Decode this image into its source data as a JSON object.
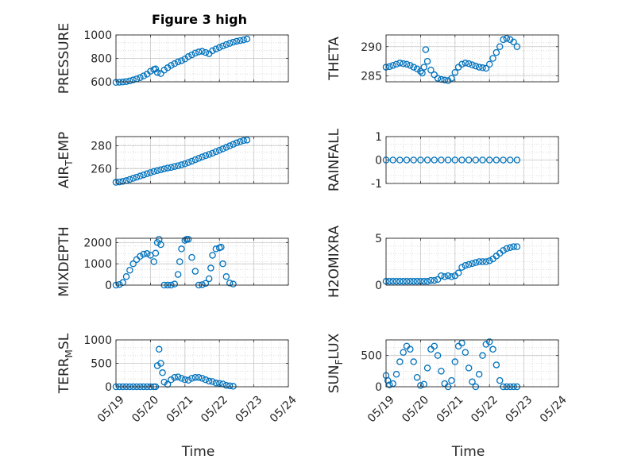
{
  "figure": {
    "title": "Figure 3 high",
    "marker_color": "#0072bd",
    "background": "#ffffff",
    "time_label": "Time",
    "date_ticks": [
      "05/19",
      "05/20",
      "05/21",
      "05/22",
      "05/23",
      "05/24"
    ]
  },
  "chart_data": [
    {
      "type": "scatter",
      "title": "Figure 3 high",
      "ylabel": "PRESSURE",
      "ylim": [
        600,
        1000
      ],
      "yticks": [
        600,
        800,
        1000
      ],
      "grid": true,
      "x_unit": "days after 05/19",
      "series": [
        {
          "x": [
            0,
            0.1,
            0.2,
            0.3,
            0.4,
            0.5,
            0.6,
            0.7,
            0.8,
            0.9,
            1.0,
            1.1,
            1.15,
            1.2,
            1.3,
            1.4,
            1.5,
            1.6,
            1.7,
            1.8,
            1.9,
            2.0,
            2.1,
            2.2,
            2.3,
            2.4,
            2.5,
            2.6,
            2.7,
            2.8,
            2.9,
            3.0,
            3.1,
            3.2,
            3.3,
            3.4,
            3.5,
            3.6,
            3.7,
            3.8
          ],
          "y": [
            595,
            596,
            598,
            602,
            608,
            616,
            625,
            636,
            650,
            665,
            690,
            705,
            710,
            680,
            670,
            700,
            720,
            740,
            755,
            770,
            780,
            795,
            815,
            830,
            845,
            855,
            860,
            850,
            840,
            865,
            880,
            893,
            906,
            918,
            928,
            938,
            946,
            952,
            958,
            965
          ]
        }
      ]
    },
    {
      "type": "scatter",
      "ylabel": "THETA",
      "ylim": [
        284,
        292
      ],
      "yticks": [
        285,
        290
      ],
      "grid": true,
      "series": [
        {
          "x": [
            0,
            0.1,
            0.2,
            0.3,
            0.4,
            0.5,
            0.6,
            0.7,
            0.8,
            0.9,
            1.0,
            1.05,
            1.1,
            1.15,
            1.2,
            1.3,
            1.4,
            1.5,
            1.6,
            1.7,
            1.8,
            1.9,
            2.0,
            2.1,
            2.2,
            2.3,
            2.4,
            2.5,
            2.6,
            2.7,
            2.8,
            2.9,
            3.0,
            3.1,
            3.2,
            3.3,
            3.4,
            3.5,
            3.6,
            3.7,
            3.8
          ],
          "y": [
            286.5,
            286.6,
            286.8,
            287.0,
            287.2,
            287.1,
            287.0,
            286.8,
            286.5,
            286.2,
            285.8,
            285.5,
            286.5,
            289.5,
            287.5,
            286.0,
            285.2,
            284.6,
            284.4,
            284.3,
            284.2,
            284.6,
            285.6,
            286.5,
            287.0,
            287.2,
            287.1,
            286.9,
            286.7,
            286.5,
            286.4,
            286.3,
            287.0,
            288.0,
            289.0,
            290.0,
            291.2,
            291.4,
            291.2,
            290.8,
            290.0
          ]
        }
      ]
    },
    {
      "type": "scatter",
      "ylabel": "AIR_TEMP",
      "ylabel_display": {
        "base": "AIR",
        "sub": "T",
        "rest": "EMP"
      },
      "ylim": [
        247,
        288
      ],
      "yticks": [
        260,
        280
      ],
      "grid": true,
      "series": [
        {
          "x": [
            0,
            0.1,
            0.2,
            0.3,
            0.4,
            0.5,
            0.6,
            0.7,
            0.8,
            0.9,
            1.0,
            1.1,
            1.2,
            1.3,
            1.4,
            1.5,
            1.6,
            1.7,
            1.8,
            1.9,
            2.0,
            2.1,
            2.2,
            2.3,
            2.4,
            2.5,
            2.6,
            2.7,
            2.8,
            2.9,
            3.0,
            3.1,
            3.2,
            3.3,
            3.4,
            3.5,
            3.6,
            3.7,
            3.8
          ],
          "y": [
            248,
            248.3,
            248.8,
            249.5,
            250.5,
            251.5,
            252.5,
            253.5,
            254.5,
            255.5,
            256.5,
            257.5,
            258.3,
            259.0,
            259.8,
            260.5,
            261.0,
            261.8,
            262.5,
            263.3,
            264.2,
            265.3,
            266.5,
            267.8,
            269.0,
            270.2,
            271.3,
            272.4,
            273.5,
            274.8,
            276.0,
            277.3,
            278.6,
            279.9,
            281.2,
            282.5,
            283.6,
            284.5,
            285.0
          ]
        }
      ]
    },
    {
      "type": "scatter",
      "ylabel": "RAINFALL",
      "ylim": [
        -1,
        1
      ],
      "yticks": [
        -1,
        0,
        1
      ],
      "grid": true,
      "series": [
        {
          "x": [
            0,
            0.2,
            0.4,
            0.6,
            0.8,
            1.0,
            1.2,
            1.4,
            1.6,
            1.8,
            2.0,
            2.2,
            2.4,
            2.6,
            2.8,
            3.0,
            3.2,
            3.4,
            3.6,
            3.8
          ],
          "y": [
            0,
            0,
            0,
            0,
            0,
            0,
            0,
            0,
            0,
            0,
            0,
            0,
            0,
            0,
            0,
            0,
            0,
            0,
            0,
            0
          ]
        }
      ]
    },
    {
      "type": "scatter",
      "ylabel": "MIXDEPTH",
      "ylim": [
        0,
        2200
      ],
      "yticks": [
        0,
        1000,
        2000
      ],
      "grid": true,
      "series": [
        {
          "x": [
            0,
            0.1,
            0.2,
            0.3,
            0.4,
            0.5,
            0.6,
            0.7,
            0.8,
            0.9,
            1.0,
            1.1,
            1.15,
            1.2,
            1.25,
            1.3,
            1.4,
            1.5,
            1.6,
            1.7,
            1.8,
            1.85,
            1.9,
            2.0,
            2.05,
            2.1,
            2.2,
            2.3,
            2.4,
            2.5,
            2.6,
            2.7,
            2.75,
            2.8,
            2.9,
            3.0,
            3.05,
            3.1,
            3.2,
            3.3,
            3.4
          ],
          "y": [
            0,
            30,
            120,
            400,
            700,
            1000,
            1200,
            1350,
            1450,
            1480,
            1400,
            1100,
            1500,
            2000,
            2150,
            1900,
            0,
            0,
            0,
            50,
            500,
            1100,
            1700,
            2100,
            2150,
            2150,
            1300,
            650,
            0,
            20,
            80,
            300,
            800,
            1400,
            1700,
            1750,
            1780,
            1000,
            400,
            100,
            50
          ]
        }
      ]
    },
    {
      "type": "scatter",
      "ylabel": "H2OMIXRA",
      "ylim": [
        0,
        5
      ],
      "yticks": [
        0,
        5
      ],
      "grid": true,
      "series": [
        {
          "x": [
            0,
            0.1,
            0.2,
            0.3,
            0.4,
            0.5,
            0.6,
            0.7,
            0.8,
            0.9,
            1.0,
            1.1,
            1.2,
            1.3,
            1.4,
            1.5,
            1.6,
            1.7,
            1.8,
            1.9,
            2.0,
            2.1,
            2.2,
            2.3,
            2.4,
            2.5,
            2.6,
            2.7,
            2.8,
            2.9,
            3.0,
            3.1,
            3.2,
            3.3,
            3.4,
            3.5,
            3.6,
            3.7,
            3.8
          ],
          "y": [
            0.4,
            0.4,
            0.4,
            0.4,
            0.4,
            0.4,
            0.4,
            0.4,
            0.4,
            0.4,
            0.4,
            0.4,
            0.4,
            0.5,
            0.5,
            0.6,
            1.0,
            0.9,
            1.0,
            0.9,
            1.0,
            1.3,
            1.9,
            2.1,
            2.2,
            2.3,
            2.4,
            2.5,
            2.5,
            2.5,
            2.6,
            2.8,
            3.1,
            3.4,
            3.7,
            3.9,
            4.0,
            4.1,
            4.1
          ]
        }
      ]
    },
    {
      "type": "scatter",
      "ylabel": "TERR_MSL",
      "ylabel_display": {
        "base": "TERR",
        "sub": "M",
        "rest": "SL"
      },
      "ylim": [
        0,
        1000
      ],
      "yticks": [
        0,
        500,
        1000
      ],
      "grid": true,
      "series": [
        {
          "x": [
            0,
            0.1,
            0.2,
            0.3,
            0.4,
            0.5,
            0.6,
            0.7,
            0.8,
            0.9,
            1.0,
            1.1,
            1.15,
            1.2,
            1.25,
            1.3,
            1.35,
            1.4,
            1.5,
            1.6,
            1.7,
            1.8,
            1.9,
            2.0,
            2.1,
            2.2,
            2.3,
            2.4,
            2.5,
            2.6,
            2.7,
            2.8,
            2.9,
            3.0,
            3.1,
            3.2,
            3.3,
            3.4
          ],
          "y": [
            0,
            0,
            0,
            0,
            0,
            0,
            0,
            0,
            0,
            0,
            0,
            0,
            0,
            450,
            800,
            500,
            300,
            100,
            50,
            150,
            200,
            210,
            180,
            150,
            140,
            180,
            200,
            200,
            180,
            150,
            120,
            110,
            80,
            70,
            60,
            30,
            20,
            10
          ]
        }
      ]
    },
    {
      "type": "scatter",
      "ylabel": "SUN_FLUX",
      "ylabel_display": {
        "base": "SUN",
        "sub": "F",
        "rest": "LUX"
      },
      "ylim": [
        0,
        750
      ],
      "yticks": [
        0,
        500
      ],
      "grid": true,
      "series": [
        {
          "x": [
            0,
            0.05,
            0.1,
            0.2,
            0.3,
            0.4,
            0.5,
            0.6,
            0.7,
            0.8,
            0.9,
            1.0,
            1.1,
            1.2,
            1.3,
            1.4,
            1.5,
            1.6,
            1.7,
            1.8,
            1.9,
            2.0,
            2.1,
            2.2,
            2.3,
            2.4,
            2.5,
            2.6,
            2.7,
            2.8,
            2.9,
            3.0,
            3.1,
            3.2,
            3.3,
            3.4,
            3.5,
            3.6,
            3.7,
            3.8
          ],
          "y": [
            180,
            100,
            30,
            50,
            200,
            400,
            550,
            650,
            600,
            400,
            150,
            20,
            40,
            300,
            600,
            650,
            500,
            250,
            50,
            0,
            100,
            400,
            650,
            700,
            550,
            300,
            80,
            0,
            200,
            500,
            680,
            720,
            600,
            350,
            100,
            0,
            0,
            0,
            0,
            0
          ]
        }
      ]
    }
  ]
}
